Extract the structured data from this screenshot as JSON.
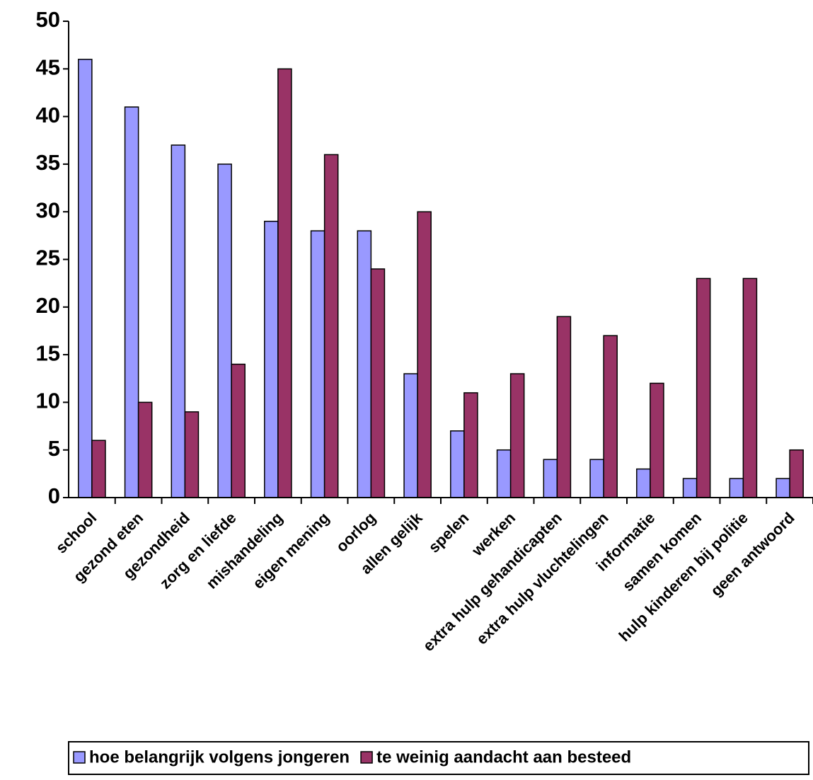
{
  "chart_data": {
    "type": "bar",
    "categories": [
      "school",
      "gezond eten",
      "gezondheid",
      "zorg en liefde",
      "mishandeling",
      "eigen mening",
      "oorlog",
      "allen gelijk",
      "spelen",
      "werken",
      "extra hulp gehandicapten",
      "extra hulp vluchtelingen",
      "informatie",
      "samen komen",
      "hulp kinderen bij politie",
      "geen antwoord"
    ],
    "series": [
      {
        "name": "hoe belangrijk volgens jongeren",
        "color": "#9999ff",
        "values": [
          46,
          41,
          37,
          35,
          29,
          28,
          28,
          13,
          7,
          5,
          4,
          4,
          3,
          2,
          2,
          2
        ]
      },
      {
        "name": "te weinig aandacht aan besteed",
        "color": "#993366",
        "values": [
          6,
          10,
          9,
          14,
          45,
          36,
          24,
          30,
          11,
          13,
          19,
          17,
          12,
          23,
          23,
          5
        ]
      }
    ],
    "ylim": [
      0,
      50
    ],
    "yticks": [
      0,
      5,
      10,
      15,
      20,
      25,
      30,
      35,
      40,
      45,
      50
    ],
    "grid": false,
    "legend": "bottom"
  }
}
